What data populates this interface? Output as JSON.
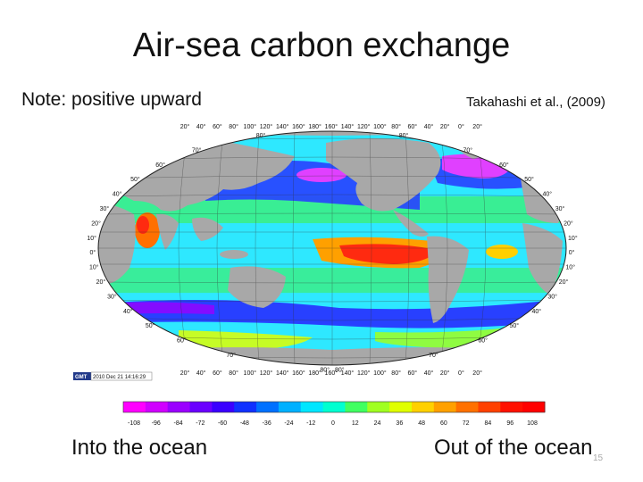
{
  "slide": {
    "title": "Air-sea carbon exchange",
    "note": "Note: positive upward",
    "citation": "Takahashi et al., (2009)",
    "left_caption": "Into the ocean",
    "right_caption": "Out of the ocean",
    "page_number": "15"
  },
  "map": {
    "lon_labels": [
      "20°",
      "40°",
      "60°",
      "80°",
      "100°",
      "120°",
      "140°",
      "160°",
      "180°",
      "160°",
      "140°",
      "120°",
      "100°",
      "80°",
      "60°",
      "40°",
      "20°",
      "0°",
      "20°"
    ],
    "lat_labels_left": [
      "80°",
      "70°",
      "60°",
      "50°",
      "40°",
      "30°",
      "20°",
      "10°",
      "0°",
      "10°",
      "20°",
      "30°",
      "40°",
      "50°",
      "60°",
      "70°",
      "80°"
    ],
    "lat_labels_right": [
      "80°",
      "70°",
      "60°",
      "50°",
      "40°",
      "30°",
      "20°",
      "10°",
      "0°",
      "10°",
      "20°",
      "30°",
      "40°",
      "50°",
      "60°",
      "70°",
      "80°"
    ],
    "gmt_logo": "GMT",
    "gmt_timestamp": "2010 Dec 21 14:16:29"
  },
  "colorbar": {
    "ticks": [
      "-108",
      "-96",
      "-84",
      "-72",
      "-60",
      "-48",
      "-36",
      "-24",
      "-12",
      "0",
      "12",
      "24",
      "36",
      "48",
      "60",
      "72",
      "84",
      "96",
      "108"
    ],
    "colors": [
      "#ff00ff",
      "#d000ff",
      "#9a00ff",
      "#6a00ff",
      "#3a00ff",
      "#1030ff",
      "#0070ff",
      "#00b0ff",
      "#00e6ff",
      "#00ffd0",
      "#40ff60",
      "#a0ff20",
      "#e0ff00",
      "#ffd000",
      "#ffa000",
      "#ff7000",
      "#ff4000",
      "#ff1000",
      "#ff0000"
    ]
  },
  "legend_colors": {
    "land": "#a8a8a8",
    "ocean_cyan": "#2ee8ff",
    "ocean_green": "#3ef070",
    "ocean_blue": "#2840ff",
    "ocean_magenta": "#e040ff",
    "ocean_red": "#ff2a10",
    "ocean_orange": "#ffa000"
  }
}
